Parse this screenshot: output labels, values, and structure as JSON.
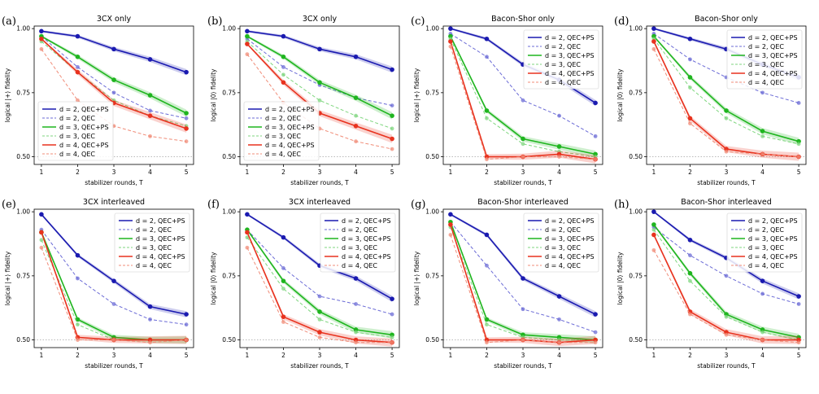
{
  "chart_data": [
    {
      "letter": "(a)",
      "title": "3CX only",
      "type": "line",
      "xlabel": "stabilizer rounds, T",
      "ylabel": "logical |+⟩ fidelity",
      "ylim": [
        0.47,
        1.01
      ],
      "xlim": [
        0.8,
        5.2
      ],
      "x": [
        1,
        2,
        3,
        4,
        5
      ],
      "xticks": [
        1,
        2,
        3,
        4,
        5
      ],
      "yticks": [
        0.5,
        0.75,
        1.0
      ],
      "ytick_labels": [
        "0.50",
        "0.75",
        "1.00"
      ],
      "reference_line": 0.5,
      "legend_position": "bottom-left",
      "series": [
        {
          "name": "d = 2, QEC+PS",
          "key": "d2ps",
          "values": [
            0.99,
            0.97,
            0.92,
            0.88,
            0.83
          ]
        },
        {
          "name": "d = 2, QEC",
          "key": "d2q",
          "values": [
            0.97,
            0.85,
            0.75,
            0.68,
            0.65
          ]
        },
        {
          "name": "d = 3, QEC+PS",
          "key": "d3ps",
          "values": [
            0.97,
            0.89,
            0.8,
            0.74,
            0.67
          ]
        },
        {
          "name": "d = 3, QEC",
          "key": "d3q",
          "values": [
            0.95,
            0.83,
            0.72,
            0.66,
            0.62
          ]
        },
        {
          "name": "d = 4, QEC+PS",
          "key": "d4ps",
          "values": [
            0.96,
            0.83,
            0.71,
            0.66,
            0.61
          ]
        },
        {
          "name": "d = 4, QEC",
          "key": "d4q",
          "values": [
            0.92,
            0.72,
            0.62,
            0.58,
            0.56
          ]
        }
      ]
    },
    {
      "letter": "(b)",
      "title": "3CX only",
      "type": "line",
      "xlabel": "stabilizer rounds, T",
      "ylabel": "logical |0⟩ fidelity",
      "ylim": [
        0.47,
        1.01
      ],
      "xlim": [
        0.8,
        5.2
      ],
      "x": [
        1,
        2,
        3,
        4,
        5
      ],
      "xticks": [
        1,
        2,
        3,
        4,
        5
      ],
      "yticks": [
        0.5,
        0.75,
        1.0
      ],
      "ytick_labels": [
        "0.50",
        "0.75",
        "1.00"
      ],
      "reference_line": 0.5,
      "legend_position": "bottom-left",
      "series": [
        {
          "name": "d = 2, QEC+PS",
          "key": "d2ps",
          "values": [
            0.99,
            0.97,
            0.92,
            0.89,
            0.84
          ]
        },
        {
          "name": "d = 2, QEC",
          "key": "d2q",
          "values": [
            0.96,
            0.85,
            0.78,
            0.73,
            0.7
          ]
        },
        {
          "name": "d = 3, QEC+PS",
          "key": "d3ps",
          "values": [
            0.97,
            0.89,
            0.79,
            0.73,
            0.66
          ]
        },
        {
          "name": "d = 3, QEC",
          "key": "d3q",
          "values": [
            0.95,
            0.82,
            0.72,
            0.66,
            0.61
          ]
        },
        {
          "name": "d = 4, QEC+PS",
          "key": "d4ps",
          "values": [
            0.94,
            0.79,
            0.67,
            0.62,
            0.57
          ]
        },
        {
          "name": "d = 4, QEC",
          "key": "d4q",
          "values": [
            0.9,
            0.71,
            0.61,
            0.56,
            0.53
          ]
        }
      ]
    },
    {
      "letter": "(c)",
      "title": "Bacon-Shor only",
      "type": "line",
      "xlabel": "stabilizer rounds, T",
      "ylabel": "logical |+⟩ fidelity",
      "ylim": [
        0.47,
        1.01
      ],
      "xlim": [
        0.8,
        5.2
      ],
      "x": [
        1,
        2,
        3,
        4,
        5
      ],
      "xticks": [
        1,
        2,
        3,
        4,
        5
      ],
      "yticks": [
        0.5,
        0.75,
        1.0
      ],
      "ytick_labels": [
        "0.50",
        "0.75",
        "1.00"
      ],
      "reference_line": 0.5,
      "legend_position": "top-right",
      "series": [
        {
          "name": "d = 2, QEC+PS",
          "key": "d2ps",
          "values": [
            1.0,
            0.96,
            0.86,
            0.8,
            0.71
          ]
        },
        {
          "name": "d = 2, QEC",
          "key": "d2q",
          "values": [
            0.98,
            0.89,
            0.72,
            0.66,
            0.58
          ]
        },
        {
          "name": "d = 3, QEC+PS",
          "key": "d3ps",
          "values": [
            0.97,
            0.68,
            0.57,
            0.54,
            0.51
          ]
        },
        {
          "name": "d = 3, QEC",
          "key": "d3q",
          "values": [
            0.96,
            0.65,
            0.55,
            0.52,
            0.5
          ]
        },
        {
          "name": "d = 4, QEC+PS",
          "key": "d4ps",
          "values": [
            0.95,
            0.5,
            0.5,
            0.51,
            0.49
          ]
        },
        {
          "name": "d = 4, QEC",
          "key": "d4q",
          "values": [
            0.93,
            0.49,
            0.5,
            0.5,
            0.49
          ]
        }
      ]
    },
    {
      "letter": "(d)",
      "title": "Bacon-Shor only",
      "type": "line",
      "xlabel": "stabilizer rounds, T",
      "ylabel": "logical |0⟩ fidelity",
      "ylim": [
        0.47,
        1.01
      ],
      "xlim": [
        0.8,
        5.2
      ],
      "x": [
        1,
        2,
        3,
        4,
        5
      ],
      "xticks": [
        1,
        2,
        3,
        4,
        5
      ],
      "yticks": [
        0.5,
        0.75,
        1.0
      ],
      "ytick_labels": [
        "0.50",
        "0.75",
        "1.00"
      ],
      "reference_line": 0.5,
      "legend_position": "top-right",
      "series": [
        {
          "name": "d = 2, QEC+PS",
          "key": "d2ps",
          "values": [
            1.0,
            0.96,
            0.92,
            0.86,
            0.81
          ]
        },
        {
          "name": "d = 2, QEC",
          "key": "d2q",
          "values": [
            0.98,
            0.88,
            0.81,
            0.75,
            0.71
          ]
        },
        {
          "name": "d = 3, QEC+PS",
          "key": "d3ps",
          "values": [
            0.97,
            0.81,
            0.68,
            0.6,
            0.56
          ]
        },
        {
          "name": "d = 3, QEC",
          "key": "d3q",
          "values": [
            0.96,
            0.77,
            0.65,
            0.58,
            0.55
          ]
        },
        {
          "name": "d = 4, QEC+PS",
          "key": "d4ps",
          "values": [
            0.95,
            0.65,
            0.53,
            0.51,
            0.5
          ]
        },
        {
          "name": "d = 4, QEC",
          "key": "d4q",
          "values": [
            0.92,
            0.63,
            0.52,
            0.51,
            0.5
          ]
        }
      ]
    },
    {
      "letter": "(e)",
      "title": "3CX interleaved",
      "type": "line",
      "xlabel": "stabilizer rounds, T",
      "ylabel": "logical |+⟩ fidelity",
      "ylim": [
        0.47,
        1.01
      ],
      "xlim": [
        0.8,
        5.2
      ],
      "x": [
        1,
        2,
        3,
        4,
        5
      ],
      "xticks": [
        1,
        2,
        3,
        4,
        5
      ],
      "yticks": [
        0.5,
        0.75,
        1.0
      ],
      "ytick_labels": [
        "0.50",
        "0.75",
        "1.00"
      ],
      "reference_line": 0.5,
      "legend_position": "top-right",
      "series": [
        {
          "name": "d = 2, QEC+PS",
          "key": "d2ps",
          "values": [
            0.99,
            0.83,
            0.73,
            0.63,
            0.6
          ]
        },
        {
          "name": "d = 2, QEC",
          "key": "d2q",
          "values": [
            0.93,
            0.74,
            0.64,
            0.58,
            0.56
          ]
        },
        {
          "name": "d = 3, QEC+PS",
          "key": "d3ps",
          "values": [
            0.92,
            0.58,
            0.51,
            0.5,
            0.5
          ]
        },
        {
          "name": "d = 3, QEC",
          "key": "d3q",
          "values": [
            0.89,
            0.56,
            0.5,
            0.5,
            0.5
          ]
        },
        {
          "name": "d = 4, QEC+PS",
          "key": "d4ps",
          "values": [
            0.92,
            0.51,
            0.5,
            0.5,
            0.5
          ]
        },
        {
          "name": "d = 4, QEC",
          "key": "d4q",
          "values": [
            0.86,
            0.5,
            0.5,
            0.49,
            0.5
          ]
        }
      ]
    },
    {
      "letter": "(f)",
      "title": "3CX interleaved",
      "type": "line",
      "xlabel": "stabilizer rounds, T",
      "ylabel": "logical |0⟩ fidelity",
      "ylim": [
        0.47,
        1.01
      ],
      "xlim": [
        0.8,
        5.2
      ],
      "x": [
        1,
        2,
        3,
        4,
        5
      ],
      "xticks": [
        1,
        2,
        3,
        4,
        5
      ],
      "yticks": [
        0.5,
        0.75,
        1.0
      ],
      "ytick_labels": [
        "0.50",
        "0.75",
        "1.00"
      ],
      "reference_line": 0.5,
      "legend_position": "top-right",
      "series": [
        {
          "name": "d = 2, QEC+PS",
          "key": "d2ps",
          "values": [
            0.99,
            0.9,
            0.79,
            0.74,
            0.66
          ]
        },
        {
          "name": "d = 2, QEC",
          "key": "d2q",
          "values": [
            0.93,
            0.78,
            0.67,
            0.64,
            0.6
          ]
        },
        {
          "name": "d = 3, QEC+PS",
          "key": "d3ps",
          "values": [
            0.93,
            0.73,
            0.61,
            0.54,
            0.52
          ]
        },
        {
          "name": "d = 3, QEC",
          "key": "d3q",
          "values": [
            0.9,
            0.7,
            0.58,
            0.53,
            0.51
          ]
        },
        {
          "name": "d = 4, QEC+PS",
          "key": "d4ps",
          "values": [
            0.92,
            0.59,
            0.53,
            0.5,
            0.49
          ]
        },
        {
          "name": "d = 4, QEC",
          "key": "d4q",
          "values": [
            0.86,
            0.57,
            0.51,
            0.49,
            0.49
          ]
        }
      ]
    },
    {
      "letter": "(g)",
      "title": "Bacon-Shor interleaved",
      "type": "line",
      "xlabel": "stabilizer rounds, T",
      "ylabel": "logical |+⟩ fidelity",
      "ylim": [
        0.47,
        1.01
      ],
      "xlim": [
        0.8,
        5.2
      ],
      "x": [
        1,
        2,
        3,
        4,
        5
      ],
      "xticks": [
        1,
        2,
        3,
        4,
        5
      ],
      "yticks": [
        0.5,
        0.75,
        1.0
      ],
      "ytick_labels": [
        "0.50",
        "0.75",
        "1.00"
      ],
      "reference_line": 0.5,
      "legend_position": "top-right",
      "series": [
        {
          "name": "d = 2, QEC+PS",
          "key": "d2ps",
          "values": [
            0.99,
            0.91,
            0.74,
            0.67,
            0.6
          ]
        },
        {
          "name": "d = 2, QEC",
          "key": "d2q",
          "values": [
            0.96,
            0.79,
            0.62,
            0.58,
            0.53
          ]
        },
        {
          "name": "d = 3, QEC+PS",
          "key": "d3ps",
          "values": [
            0.96,
            0.58,
            0.52,
            0.51,
            0.5
          ]
        },
        {
          "name": "d = 3, QEC",
          "key": "d3q",
          "values": [
            0.94,
            0.56,
            0.51,
            0.5,
            0.5
          ]
        },
        {
          "name": "d = 4, QEC+PS",
          "key": "d4ps",
          "values": [
            0.95,
            0.5,
            0.5,
            0.49,
            0.5
          ]
        },
        {
          "name": "d = 4, QEC",
          "key": "d4q",
          "values": [
            0.91,
            0.49,
            0.5,
            0.49,
            0.49
          ]
        }
      ]
    },
    {
      "letter": "(h)",
      "title": "Bacon-Shor interleaved",
      "type": "line",
      "xlabel": "stabilizer rounds, T",
      "ylabel": "logical |0⟩ fidelity",
      "ylim": [
        0.47,
        1.01
      ],
      "xlim": [
        0.8,
        5.2
      ],
      "x": [
        1,
        2,
        3,
        4,
        5
      ],
      "xticks": [
        1,
        2,
        3,
        4,
        5
      ],
      "yticks": [
        0.5,
        0.75,
        1.0
      ],
      "ytick_labels": [
        "0.50",
        "0.75",
        "1.00"
      ],
      "reference_line": 0.5,
      "legend_position": "top-right",
      "series": [
        {
          "name": "d = 2, QEC+PS",
          "key": "d2ps",
          "values": [
            1.0,
            0.89,
            0.82,
            0.73,
            0.67
          ]
        },
        {
          "name": "d = 2, QEC",
          "key": "d2q",
          "values": [
            0.94,
            0.83,
            0.75,
            0.68,
            0.64
          ]
        },
        {
          "name": "d = 3, QEC+PS",
          "key": "d3ps",
          "values": [
            0.95,
            0.76,
            0.6,
            0.54,
            0.51
          ]
        },
        {
          "name": "d = 3, QEC",
          "key": "d3q",
          "values": [
            0.93,
            0.73,
            0.59,
            0.53,
            0.5
          ]
        },
        {
          "name": "d = 4, QEC+PS",
          "key": "d4ps",
          "values": [
            0.91,
            0.61,
            0.53,
            0.5,
            0.5
          ]
        },
        {
          "name": "d = 4, QEC",
          "key": "d4q",
          "values": [
            0.85,
            0.6,
            0.52,
            0.5,
            0.49
          ]
        }
      ]
    }
  ],
  "series_styles": {
    "d2ps": {
      "color": "#1a1ab0",
      "dashed": false,
      "band": true,
      "marker": true
    },
    "d2q": {
      "color": "#6b6bd6",
      "dashed": true,
      "band": false,
      "marker": true
    },
    "d3ps": {
      "color": "#1fb51f",
      "dashed": false,
      "band": true,
      "marker": true
    },
    "d3q": {
      "color": "#7fd67f",
      "dashed": true,
      "band": false,
      "marker": true
    },
    "d4ps": {
      "color": "#e8321e",
      "dashed": false,
      "band": true,
      "marker": true
    },
    "d4q": {
      "color": "#f08c78",
      "dashed": true,
      "band": false,
      "marker": true
    }
  }
}
